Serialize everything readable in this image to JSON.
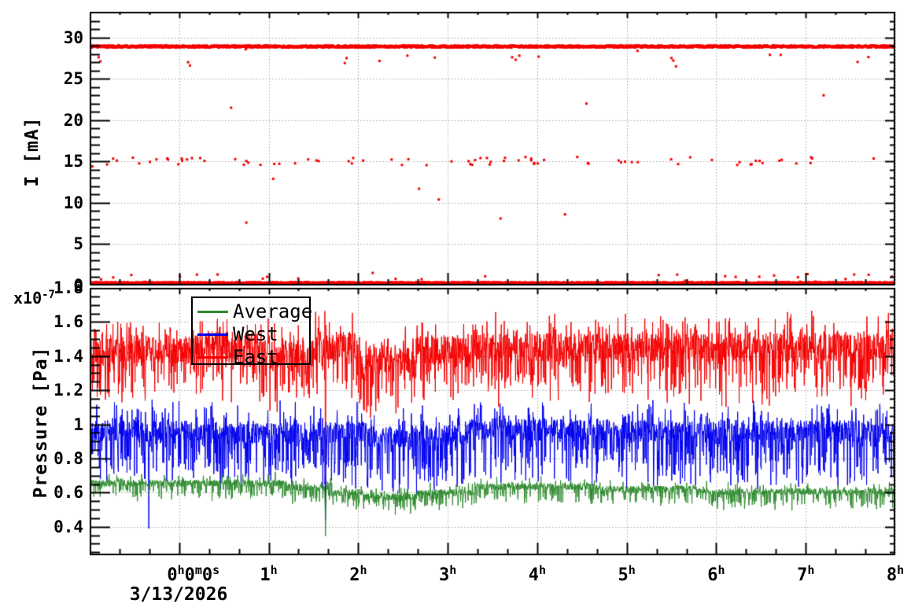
{
  "figure": {
    "background": "#ffffff"
  },
  "colors": {
    "axis": "#000000",
    "grid": "#a6a6a6",
    "east": "#f40000",
    "west": "#0000ee",
    "average": "#2e8b2e"
  },
  "legend": {
    "entries": [
      {
        "label": "Average",
        "color": "#2e8b2e"
      },
      {
        "label": "West",
        "color": "#0000ee"
      },
      {
        "label": "East",
        "color": "#f40000"
      }
    ]
  },
  "x_axis": {
    "date_label": "3/13/2026",
    "range_hours": [
      -1,
      8
    ],
    "minor_ticks_per_hour": 2,
    "ticks": [
      {
        "hour": 0,
        "parts": [
          [
            "0",
            "h"
          ],
          [
            "0",
            "m"
          ],
          [
            "0",
            "s"
          ]
        ],
        "offset": 18
      },
      {
        "hour": 1,
        "parts": [
          [
            "1",
            "h"
          ]
        ],
        "offset": 0
      },
      {
        "hour": 2,
        "parts": [
          [
            "2",
            "h"
          ]
        ],
        "offset": 0
      },
      {
        "hour": 3,
        "parts": [
          [
            "3",
            "h"
          ]
        ],
        "offset": 0
      },
      {
        "hour": 4,
        "parts": [
          [
            "4",
            "h"
          ]
        ],
        "offset": 0
      },
      {
        "hour": 5,
        "parts": [
          [
            "5",
            "h"
          ]
        ],
        "offset": 0
      },
      {
        "hour": 6,
        "parts": [
          [
            "6",
            "h"
          ]
        ],
        "offset": 0
      },
      {
        "hour": 7,
        "parts": [
          [
            "7",
            "h"
          ]
        ],
        "offset": 0
      },
      {
        "hour": 8,
        "parts": [
          [
            "8",
            "h"
          ]
        ],
        "offset": 0
      }
    ]
  },
  "chart_data": [
    {
      "type": "scatter",
      "panel": "top",
      "title": "",
      "ylabel": "I [mA]",
      "ylim": [
        0,
        33.1
      ],
      "grid": true,
      "yticks": [
        {
          "v": 0,
          "label": "0"
        },
        {
          "v": 5,
          "label": "5"
        },
        {
          "v": 10,
          "label": "10"
        },
        {
          "v": 15,
          "label": "15"
        },
        {
          "v": 20,
          "label": "20"
        },
        {
          "v": 25,
          "label": "25"
        },
        {
          "v": 30,
          "label": "30"
        }
      ],
      "y_minor_step": 1,
      "series": [
        {
          "name": "beam-current",
          "color": "#f40000",
          "marker": "square",
          "marker_px": 3,
          "bands": [
            {
              "name": "main-band",
              "n": 2300,
              "y_mean": 28.9,
              "y_jitter": 0.13,
              "dip_prob": 0.006,
              "dip_range": [
                0.3,
                2.0
              ]
            },
            {
              "name": "mid-band",
              "n": 80,
              "y_mean": 15.05,
              "y_jitter": 0.5,
              "random_x": true
            },
            {
              "name": "low-band",
              "n": 2300,
              "y_mean": 0.3,
              "y_jitter": 0.1,
              "up_prob": 0.012,
              "up_range": [
                0.2,
                1.2
              ]
            }
          ],
          "outliers": [
            [
              0.58,
              21.5
            ],
            [
              4.55,
              22.0
            ],
            [
              7.2,
              23.0
            ],
            [
              0.75,
              7.6
            ],
            [
              3.59,
              8.1
            ],
            [
              4.31,
              8.6
            ],
            [
              2.68,
              11.7
            ],
            [
              2.9,
              10.4
            ],
            [
              1.05,
              12.9
            ],
            [
              -0.97,
              14.4
            ],
            [
              0.1,
              27.0
            ],
            [
              0.12,
              26.6
            ],
            [
              1.85,
              26.9
            ],
            [
              1.87,
              27.5
            ],
            [
              3.72,
              27.6
            ],
            [
              3.76,
              27.3
            ],
            [
              3.8,
              27.8
            ],
            [
              5.5,
              27.5
            ],
            [
              5.52,
              27.2
            ],
            [
              5.55,
              26.5
            ],
            [
              -0.9,
              27.6
            ],
            [
              -0.88,
              27.1
            ],
            [
              2.55,
              27.8
            ],
            [
              6.6,
              27.9
            ]
          ]
        }
      ]
    },
    {
      "type": "line",
      "panel": "bottom",
      "title": "",
      "ylabel": "Pressure [Pa]",
      "scale": {
        "mantissa": "x10",
        "exponent": "-7"
      },
      "ylim": [
        0.233,
        1.8
      ],
      "grid": true,
      "yticks": [
        {
          "v": 0.4,
          "label": "0.4"
        },
        {
          "v": 0.6,
          "label": "0.6"
        },
        {
          "v": 0.8,
          "label": "0.8"
        },
        {
          "v": 1.0,
          "label": "1"
        },
        {
          "v": 1.2,
          "label": "1.2"
        },
        {
          "v": 1.4,
          "label": "1.4"
        },
        {
          "v": 1.6,
          "label": "1.6"
        },
        {
          "v": 1.8,
          "label": "1.8"
        }
      ],
      "y_minor_step": 0.05,
      "draw_order": [
        "East",
        "West",
        "Average"
      ],
      "series": [
        {
          "name": "East",
          "color": "#f40000",
          "n": 2700,
          "jitter": 0.085,
          "down_prob": 0.28,
          "down_range": [
            0.04,
            0.28
          ],
          "up_prob": 0.18,
          "up_range": [
            0.04,
            0.14
          ],
          "base": [
            [
              -1,
              0.2,
              1.44
            ],
            [
              0.2,
              0.9,
              1.46
            ],
            [
              0.9,
              1.5,
              1.41
            ],
            [
              1.5,
              2.0,
              1.46
            ],
            [
              2.0,
              2.6,
              1.38
            ],
            [
              2.6,
              3.3,
              1.44
            ],
            [
              3.3,
              8,
              1.45
            ]
          ]
        },
        {
          "name": "West",
          "color": "#0000ee",
          "n": 2700,
          "jitter": 0.065,
          "down_prob": 0.28,
          "down_range": [
            0.04,
            0.3
          ],
          "up_prob": 0.15,
          "up_range": [
            0.03,
            0.13
          ],
          "base": [
            [
              -1,
              0.3,
              0.96
            ],
            [
              0.3,
              2.2,
              0.95
            ],
            [
              2.2,
              3.2,
              0.93
            ],
            [
              3.2,
              5,
              0.97
            ],
            [
              5,
              8,
              0.96
            ]
          ]
        },
        {
          "name": "Average",
          "color": "#2e8b2e",
          "n": 2700,
          "jitter": 0.02,
          "down_prob": 0.22,
          "down_range": [
            0.015,
            0.09
          ],
          "up_prob": 0.1,
          "up_range": [
            0.01,
            0.05
          ],
          "base": [
            [
              -1,
              1.2,
              0.655
            ],
            [
              1.2,
              1.7,
              0.63
            ],
            [
              1.7,
              2.05,
              0.6
            ],
            [
              2.05,
              2.65,
              0.575
            ],
            [
              2.65,
              3.3,
              0.6
            ],
            [
              3.3,
              4.7,
              0.635
            ],
            [
              4.7,
              5.8,
              0.62
            ],
            [
              5.8,
              8,
              0.605
            ]
          ]
        }
      ],
      "events": [
        {
          "x": 1.635,
          "values": {
            "East": 0.6,
            "West": 0.44,
            "Average": 0.345
          }
        },
        {
          "x": -0.34,
          "values": {
            "West": 0.39
          }
        }
      ]
    }
  ]
}
